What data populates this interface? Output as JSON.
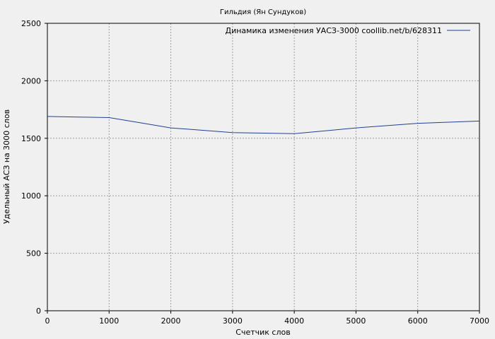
{
  "chart_data": {
    "type": "line",
    "title": "Гильдия (Ян Сундуков)",
    "xlabel": "Счетчик слов",
    "ylabel": "Удельный АСЗ на 3000 слов",
    "xlim": [
      0,
      7000
    ],
    "ylim": [
      0,
      2500
    ],
    "x_ticks": [
      0,
      1000,
      2000,
      3000,
      4000,
      5000,
      6000,
      7000
    ],
    "y_ticks": [
      0,
      500,
      1000,
      1500,
      2000,
      2500
    ],
    "grid": true,
    "legend_position": "top-right",
    "series": [
      {
        "name": "Динамика изменения УАСЗ-3000 coollib.net/b/628311",
        "color": "#1f3f9a",
        "x": [
          0,
          500,
          1000,
          1500,
          2000,
          2500,
          3000,
          3500,
          4000,
          4500,
          5000,
          5500,
          6000,
          6500,
          7000
        ],
        "y": [
          1690,
          1685,
          1680,
          1635,
          1590,
          1570,
          1550,
          1545,
          1540,
          1565,
          1590,
          1610,
          1630,
          1640,
          1650
        ]
      }
    ]
  }
}
